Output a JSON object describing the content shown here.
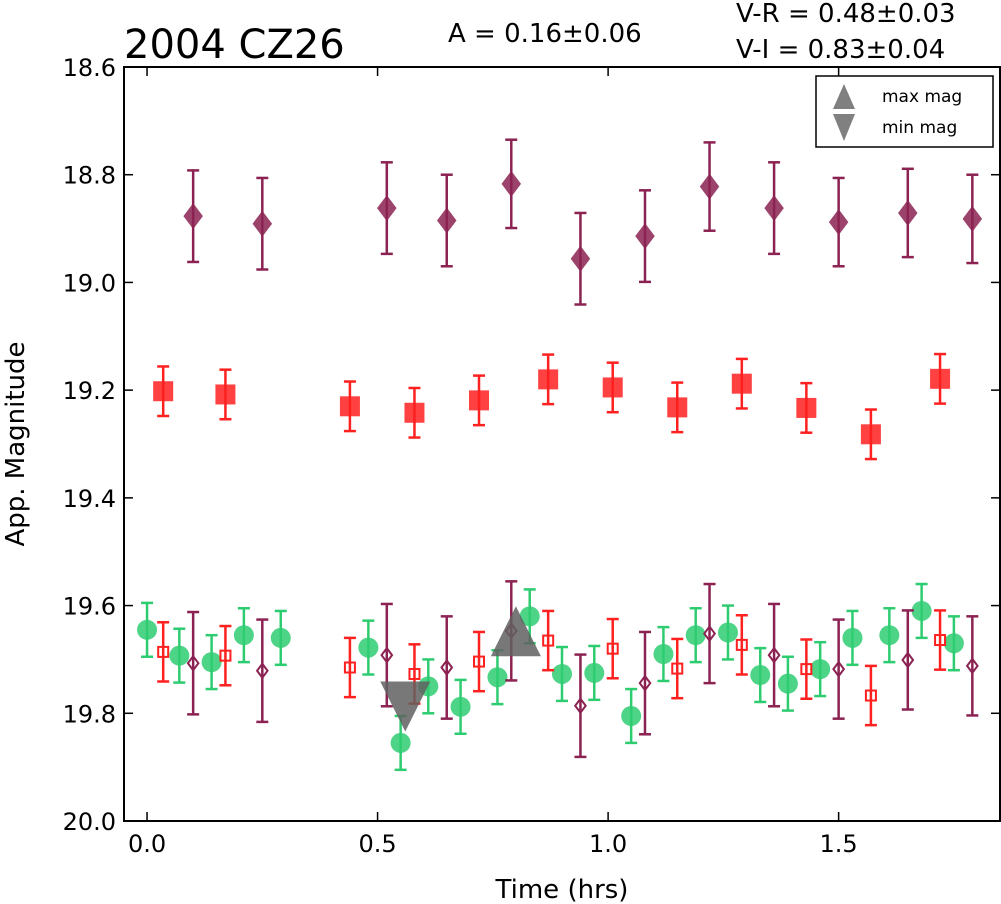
{
  "chart_data": {
    "type": "scatter",
    "title": "2004 CZ26",
    "annotations": {
      "amplitude": "A  = 0.16±0.06",
      "vr": "V-R = 0.48±0.03",
      "vi": "V-I  = 0.83±0.04"
    },
    "xlabel": "Time (hrs)",
    "ylabel": "App. Magnitude",
    "xlim": [
      -0.05,
      1.85
    ],
    "ylim": [
      20.0,
      18.6
    ],
    "y_inverted": true,
    "xticks": [
      0.0,
      0.5,
      1.0,
      1.5
    ],
    "xtick_labels": [
      "0.0",
      "0.5",
      "1.0",
      "1.5"
    ],
    "yticks": [
      18.6,
      18.8,
      19.0,
      19.2,
      19.4,
      19.6,
      19.8,
      20.0
    ],
    "ytick_labels": [
      "18.6",
      "18.8",
      "19.0",
      "19.2",
      "19.4",
      "19.6",
      "19.8",
      "20.0"
    ],
    "grid": false,
    "legend": {
      "placement": "top-right",
      "entries": [
        {
          "label": "max mag",
          "marker": "triangle-up",
          "color": "#808080"
        },
        {
          "label": "min mag",
          "marker": "triangle-down",
          "color": "#808080"
        }
      ]
    },
    "series": [
      {
        "marker": "diamond",
        "filled": true,
        "color": "#8B2252",
        "alpha": 0.85,
        "points": [
          {
            "x": 0.1,
            "y": 18.877,
            "err": 0.085
          },
          {
            "x": 0.25,
            "y": 18.891,
            "err": 0.085
          },
          {
            "x": 0.52,
            "y": 18.862,
            "err": 0.085
          },
          {
            "x": 0.65,
            "y": 18.885,
            "err": 0.085
          },
          {
            "x": 0.79,
            "y": 18.817,
            "err": 0.082
          },
          {
            "x": 0.94,
            "y": 18.956,
            "err": 0.085
          },
          {
            "x": 1.08,
            "y": 18.914,
            "err": 0.085
          },
          {
            "x": 1.22,
            "y": 18.822,
            "err": 0.082
          },
          {
            "x": 1.36,
            "y": 18.862,
            "err": 0.085
          },
          {
            "x": 1.5,
            "y": 18.888,
            "err": 0.082
          },
          {
            "x": 1.65,
            "y": 18.871,
            "err": 0.082
          },
          {
            "x": 1.79,
            "y": 18.882,
            "err": 0.082
          }
        ]
      },
      {
        "marker": "square",
        "filled": true,
        "color": "#FF2020",
        "alpha": 0.85,
        "points": [
          {
            "x": 0.035,
            "y": 19.202,
            "err": 0.046
          },
          {
            "x": 0.17,
            "y": 19.208,
            "err": 0.046
          },
          {
            "x": 0.44,
            "y": 19.23,
            "err": 0.046
          },
          {
            "x": 0.58,
            "y": 19.242,
            "err": 0.046
          },
          {
            "x": 0.72,
            "y": 19.219,
            "err": 0.046
          },
          {
            "x": 0.87,
            "y": 19.18,
            "err": 0.046
          },
          {
            "x": 1.01,
            "y": 19.195,
            "err": 0.046
          },
          {
            "x": 1.15,
            "y": 19.232,
            "err": 0.046
          },
          {
            "x": 1.29,
            "y": 19.188,
            "err": 0.046
          },
          {
            "x": 1.43,
            "y": 19.233,
            "err": 0.046
          },
          {
            "x": 1.57,
            "y": 19.282,
            "err": 0.046
          },
          {
            "x": 1.72,
            "y": 19.179,
            "err": 0.046
          }
        ]
      },
      {
        "marker": "circle",
        "filled": true,
        "color": "#2ECC71",
        "alpha": 0.85,
        "points": [
          {
            "x": 0.0,
            "y": 19.645,
            "err": 0.05
          },
          {
            "x": 0.07,
            "y": 19.693,
            "err": 0.05
          },
          {
            "x": 0.14,
            "y": 19.705,
            "err": 0.05
          },
          {
            "x": 0.21,
            "y": 19.655,
            "err": 0.05
          },
          {
            "x": 0.29,
            "y": 19.66,
            "err": 0.05
          },
          {
            "x": 0.48,
            "y": 19.678,
            "err": 0.05
          },
          {
            "x": 0.55,
            "y": 19.855,
            "err": 0.05
          },
          {
            "x": 0.61,
            "y": 19.75,
            "err": 0.05
          },
          {
            "x": 0.68,
            "y": 19.788,
            "err": 0.05
          },
          {
            "x": 0.76,
            "y": 19.733,
            "err": 0.05
          },
          {
            "x": 0.83,
            "y": 19.62,
            "err": 0.05
          },
          {
            "x": 0.9,
            "y": 19.727,
            "err": 0.05
          },
          {
            "x": 0.97,
            "y": 19.725,
            "err": 0.05
          },
          {
            "x": 1.05,
            "y": 19.805,
            "err": 0.05
          },
          {
            "x": 1.12,
            "y": 19.69,
            "err": 0.05
          },
          {
            "x": 1.19,
            "y": 19.655,
            "err": 0.05
          },
          {
            "x": 1.26,
            "y": 19.65,
            "err": 0.05
          },
          {
            "x": 1.33,
            "y": 19.729,
            "err": 0.05
          },
          {
            "x": 1.39,
            "y": 19.745,
            "err": 0.05
          },
          {
            "x": 1.46,
            "y": 19.718,
            "err": 0.05
          },
          {
            "x": 1.53,
            "y": 19.66,
            "err": 0.05
          },
          {
            "x": 1.61,
            "y": 19.655,
            "err": 0.05
          },
          {
            "x": 1.68,
            "y": 19.61,
            "err": 0.05
          },
          {
            "x": 1.75,
            "y": 19.67,
            "err": 0.05
          }
        ]
      },
      {
        "marker": "square",
        "filled": false,
        "color": "#FF2020",
        "alpha": 0.85,
        "points": [
          {
            "x": 0.035,
            "y": 19.686,
            "err": 0.055
          },
          {
            "x": 0.17,
            "y": 19.693,
            "err": 0.055
          },
          {
            "x": 0.44,
            "y": 19.715,
            "err": 0.055
          },
          {
            "x": 0.58,
            "y": 19.727,
            "err": 0.055
          },
          {
            "x": 0.72,
            "y": 19.704,
            "err": 0.055
          },
          {
            "x": 0.87,
            "y": 19.665,
            "err": 0.055
          },
          {
            "x": 1.01,
            "y": 19.68,
            "err": 0.055
          },
          {
            "x": 1.15,
            "y": 19.717,
            "err": 0.055
          },
          {
            "x": 1.29,
            "y": 19.673,
            "err": 0.055
          },
          {
            "x": 1.43,
            "y": 19.718,
            "err": 0.055
          },
          {
            "x": 1.57,
            "y": 19.767,
            "err": 0.055
          },
          {
            "x": 1.72,
            "y": 19.664,
            "err": 0.055
          }
        ]
      },
      {
        "marker": "diamond",
        "filled": false,
        "color": "#8B2252",
        "alpha": 0.85,
        "points": [
          {
            "x": 0.1,
            "y": 19.707,
            "err": 0.095
          },
          {
            "x": 0.25,
            "y": 19.721,
            "err": 0.095
          },
          {
            "x": 0.52,
            "y": 19.692,
            "err": 0.095
          },
          {
            "x": 0.65,
            "y": 19.715,
            "err": 0.095
          },
          {
            "x": 0.79,
            "y": 19.647,
            "err": 0.092
          },
          {
            "x": 0.94,
            "y": 19.786,
            "err": 0.095
          },
          {
            "x": 1.08,
            "y": 19.744,
            "err": 0.095
          },
          {
            "x": 1.22,
            "y": 19.652,
            "err": 0.092
          },
          {
            "x": 1.36,
            "y": 19.692,
            "err": 0.095
          },
          {
            "x": 1.5,
            "y": 19.718,
            "err": 0.092
          },
          {
            "x": 1.65,
            "y": 19.701,
            "err": 0.092
          },
          {
            "x": 1.79,
            "y": 19.712,
            "err": 0.092
          }
        ]
      }
    ],
    "extrema": [
      {
        "type": "max",
        "marker": "triangle-up",
        "x": 0.8,
        "y": 19.655,
        "color": "#606060"
      },
      {
        "type": "min",
        "marker": "triangle-down",
        "x": 0.56,
        "y": 19.78,
        "color": "#606060"
      }
    ]
  }
}
